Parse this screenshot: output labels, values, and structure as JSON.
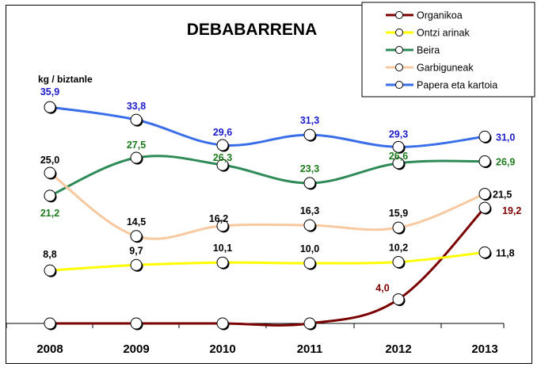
{
  "chart_data": {
    "type": "line",
    "title": "DEBABARRENA",
    "ylabel": "kg / biztanle",
    "xlabel": "",
    "categories": [
      "2008",
      "2009",
      "2010",
      "2011",
      "2012",
      "2013"
    ],
    "ylim": [
      0,
      36
    ],
    "grid": false,
    "legend_position": "top-right",
    "series": [
      {
        "name": "Organikoa",
        "color": "#7b0000",
        "label_color": "#7b0000",
        "values": [
          0,
          0,
          0,
          0,
          4.0,
          19.2
        ],
        "labels": [
          "",
          "",
          "",
          "",
          "4,0",
          "19,2"
        ]
      },
      {
        "name": "Ontzi arinak",
        "color": "#ffff00",
        "label_color": "#000000",
        "values": [
          8.8,
          9.7,
          10.1,
          10.0,
          10.2,
          11.8
        ],
        "labels": [
          "8,8",
          "9,7",
          "10,1",
          "10,0",
          "10,2",
          "11,8"
        ]
      },
      {
        "name": "Beira",
        "color": "#2e8b57",
        "label_color": "#1e7a1e",
        "values": [
          21.2,
          27.5,
          26.3,
          23.3,
          26.6,
          26.9
        ],
        "labels": [
          "21,2",
          "27,5",
          "26,3",
          "23,3",
          "26,6",
          "26,9"
        ]
      },
      {
        "name": "Garbiguneak",
        "color": "#f8c8a0",
        "label_color": "#000000",
        "values": [
          25.0,
          14.5,
          16.2,
          16.3,
          15.9,
          21.5
        ],
        "labels": [
          "25,0",
          "14,5",
          "16,2",
          "16,3",
          "15,9",
          "21,5"
        ]
      },
      {
        "name": "Papera eta kartoia",
        "color": "#3a6ee8",
        "label_color": "#1c1cc8",
        "values": [
          35.9,
          33.8,
          29.6,
          31.3,
          29.3,
          31.0
        ],
        "labels": [
          "35,9",
          "33,8",
          "29,6",
          "31,3",
          "29,3",
          "31,0"
        ]
      }
    ]
  }
}
